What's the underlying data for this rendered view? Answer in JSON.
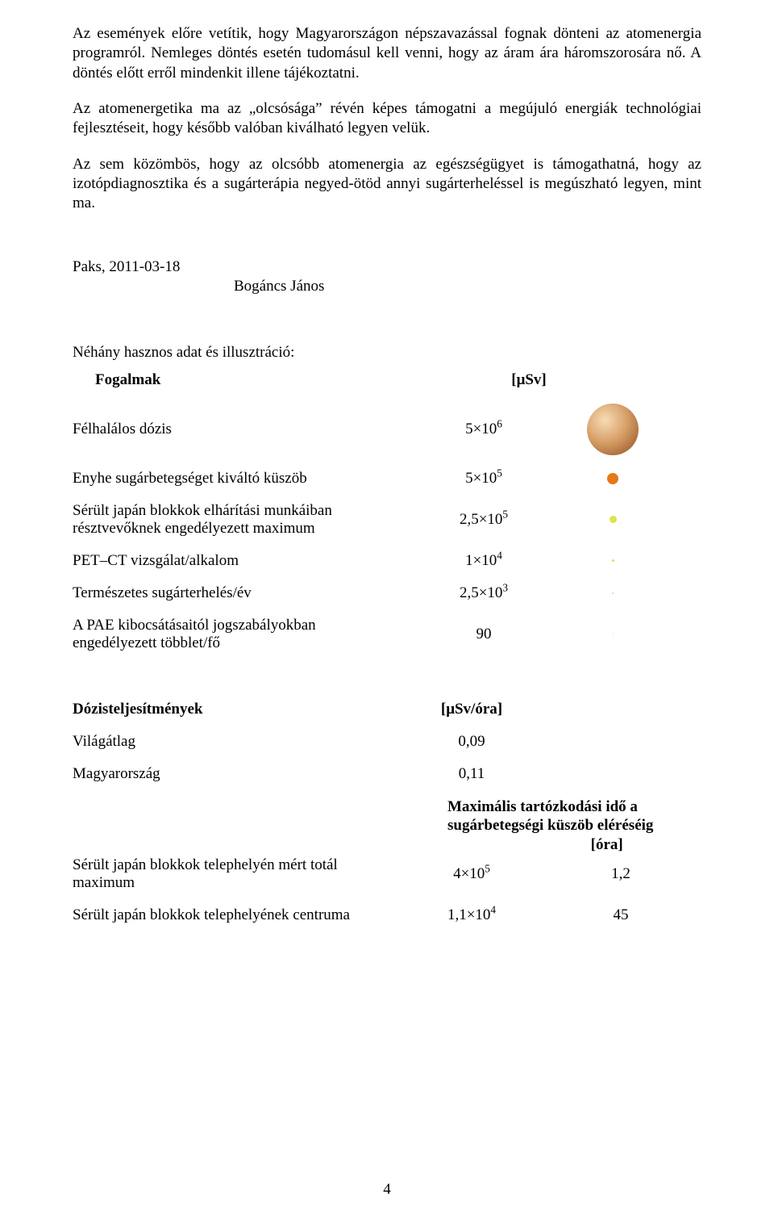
{
  "paragraphs": {
    "p1": "Az események előre vetítik, hogy Magyarországon népszavazással fognak dönteni az atomenergia programról. Nemleges döntés esetén tudomásul kell venni, hogy az áram ára háromszorosára nő. A döntés előtt erről mindenkit illene tájékoztatni.",
    "p2": "Az atomenergetika ma az „olcsósága” révén képes támogatni a megújuló energiák technológiai fejlesztéseit, hogy később valóban kiválható legyen velük.",
    "p3": "Az sem közömbös, hogy az olcsóbb atomenergia az egészségügyet is támogathatná, hogy az izotópdiagnosztika és a sugárterápia negyed-ötöd annyi sugárterheléssel is megúszható legyen, mint ma."
  },
  "date": "Paks, 2011-03-18",
  "author": "Bogáncs János",
  "section1": {
    "intro": "Néhány hasznos adat és illusztráció:",
    "header_label": "Fogalmak",
    "header_unit": "[μSv]",
    "rows": [
      {
        "label": "Félhalálos dózis",
        "val_base": "5×10",
        "val_exp": "6"
      },
      {
        "label": "Enyhe sugárbetegséget kiváltó küszöb",
        "val_base": "5×10",
        "val_exp": "5"
      },
      {
        "label_l1": "Sérült japán blokkok elhárítási munkáiban",
        "label_l2": "résztvevőknek engedélyezett maximum",
        "val_base": "2,5×10",
        "val_exp": "5"
      },
      {
        "label": "PET–CT vizsgálat/alkalom",
        "val_base": "1×10",
        "val_exp": "4"
      },
      {
        "label": "Természetes sugárterhelés/év",
        "val_base": "2,5×10",
        "val_exp": "3"
      },
      {
        "label_l1": "A PAE kibocsátásaitól jogszabályokban",
        "label_l2": "engedélyezett többlet/fő",
        "val_plain": "90"
      }
    ],
    "icons": [
      {
        "type": "sphere"
      },
      {
        "type": "dot",
        "size": 14,
        "color": "#e67817"
      },
      {
        "type": "dot",
        "size": 9,
        "color": "#d8e64a"
      },
      {
        "type": "dot",
        "size": 3,
        "color": "#d8e64a"
      },
      {
        "type": "dot",
        "size": 2,
        "color": "#cccccc"
      },
      {
        "type": "dot",
        "size": 1,
        "color": "#cccccc"
      }
    ]
  },
  "section2": {
    "header_label": "Dózisteljesítmények",
    "header_unit": "[μSv/óra]",
    "subhead_l1": "Maximális tartózkodási idő a",
    "subhead_l2": "sugárbetegségi küszöb eléréséig",
    "subhead_l3": "[óra]",
    "rows": [
      {
        "label": "Világátlag",
        "val": "0,09",
        "third": ""
      },
      {
        "label": "Magyarország",
        "val": "0,11",
        "third": ""
      },
      {
        "label": "Sérült japán blokkok telephelyén mért totál maximum",
        "val_base": "4×10",
        "val_exp": "5",
        "third": "1,2"
      },
      {
        "label": "Sérült japán blokkok telephelyének centruma",
        "val_base": "1,1×10",
        "val_exp": "4",
        "third": "45"
      }
    ]
  },
  "page_number": "4"
}
